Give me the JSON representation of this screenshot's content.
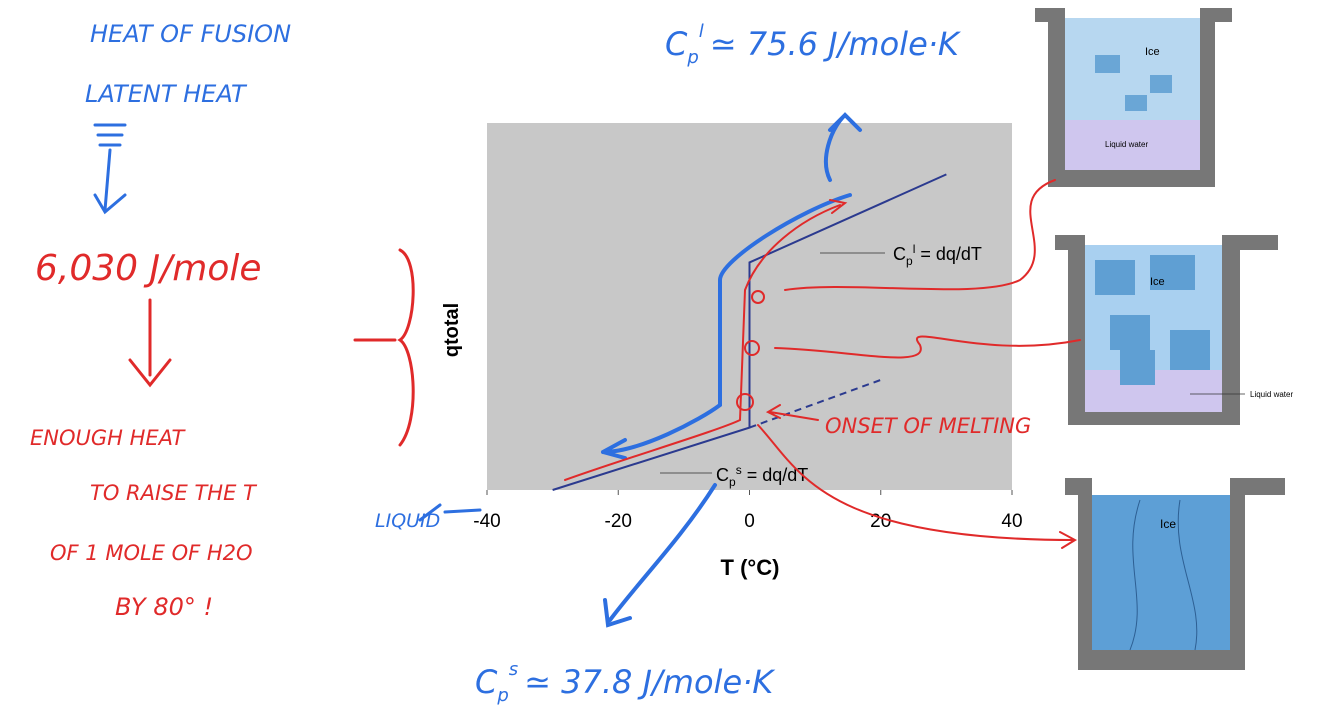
{
  "chart_data": {
    "type": "line",
    "x_label": "T (°C)",
    "y_label": "qtotal",
    "xlim": [
      -40,
      40
    ],
    "xticks": [
      -40,
      -20,
      0,
      20,
      40
    ],
    "ylim": [
      0,
      100
    ],
    "series": [
      {
        "color": "#2b3a8f",
        "x": [
          -30,
          0,
          0,
          30
        ],
        "values": [
          0,
          17,
          62,
          86
        ]
      },
      {
        "color": "#2b3a8f",
        "dashed": true,
        "x": [
          0,
          20
        ],
        "values": [
          17,
          30
        ]
      }
    ],
    "slope_labels": [
      {
        "base": "C",
        "sub": "p",
        "sup": "l",
        "rest": " = dq/dT"
      },
      {
        "base": "C",
        "sub": "p",
        "sup": "s",
        "rest": " = dq/dT"
      }
    ]
  },
  "annotations": {
    "heat_of_fusion": "HEAT OF FUSION",
    "latent_heat": "LATENT HEAT",
    "value": "6,030 J/mole",
    "explanation": [
      "ENOUGH HEAT",
      "TO RAISE THE T",
      "OF 1 MOLE OF H2O",
      "BY 80° !"
    ],
    "liquid": "LIQUID",
    "onset": "ONSET OF MELTING",
    "cp_liquid": {
      "base": "C",
      "sub": "p",
      "sup": "l",
      "rest": "≃ 75.6 J/mole·K"
    },
    "cp_solid": {
      "base": "C",
      "sub": "p",
      "sup": "s",
      "rest": "≃ 37.8 J/mole·K"
    }
  },
  "beakers": [
    {
      "ice": "Ice",
      "water": "Liquid water"
    },
    {
      "ice": "Ice",
      "water": "Liquid water"
    },
    {
      "ice": "Ice"
    }
  ]
}
